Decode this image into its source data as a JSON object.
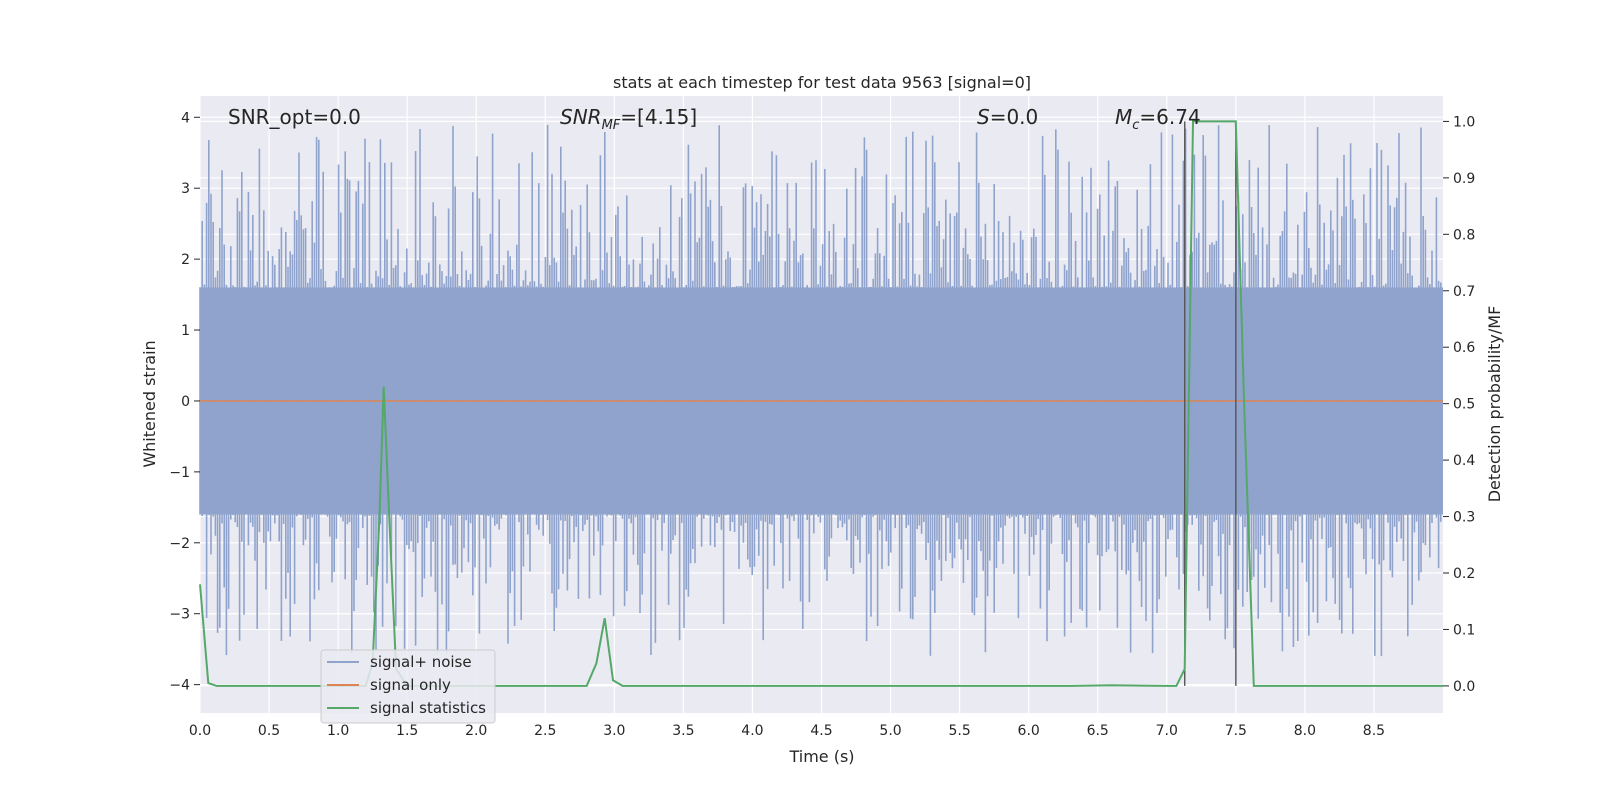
{
  "chart_data": {
    "type": "line",
    "title": "stats at each timestep for test data 9563 [signal=0]",
    "xlabel": "Time (s)",
    "ylabel": "Whitened strain",
    "y2label": "Detection probability/MF",
    "xlim": [
      0.0,
      9.0
    ],
    "ylim": [
      -4.4,
      4.3
    ],
    "y2lim": [
      -0.048,
      1.045
    ],
    "grid": true,
    "legend_position": "lower-left",
    "x_ticks": [
      "0.0",
      "0.5",
      "1.0",
      "1.5",
      "2.0",
      "2.5",
      "3.0",
      "3.5",
      "4.0",
      "4.5",
      "5.0",
      "5.5",
      "6.0",
      "6.5",
      "7.0",
      "7.5",
      "8.0",
      "8.5"
    ],
    "y_ticks": [
      "4",
      "3",
      "2",
      "1",
      "0",
      "−1",
      "−2",
      "−3",
      "−4"
    ],
    "y2_ticks": [
      "1.0",
      "0.9",
      "0.8",
      "0.7",
      "0.6",
      "0.5",
      "0.4",
      "0.3",
      "0.2",
      "0.1",
      "0.0"
    ],
    "annotations": {
      "snr_opt": "SNR_opt=0.0",
      "snr_mf_base": "SNR",
      "snr_mf_sub": "MF",
      "snr_mf_rest": "=[4.15]",
      "s_base": "S",
      "s_rest": "=0.0",
      "mc_base": "M",
      "mc_sub": "c",
      "mc_rest": "=6.74"
    },
    "vertical_markers_x": [
      7.13,
      7.5
    ],
    "series": [
      {
        "name": "signal+ noise",
        "color": "#8fa3cc",
        "x_range": [
          0.0,
          9.0
        ],
        "mean": 0.0,
        "dense_envelope": [
          -1.6,
          1.6
        ],
        "spike_extremes": {
          "max": 3.9,
          "min": -3.6
        }
      },
      {
        "name": "signal only",
        "color": "#dd8452",
        "x": [
          0.0,
          9.0
        ],
        "y": [
          0.0,
          0.0
        ]
      },
      {
        "name": "signal statistics",
        "color": "#55a868",
        "x": [
          0.0,
          0.06,
          0.12,
          0.3,
          1.2,
          1.25,
          1.3,
          1.33,
          1.37,
          1.42,
          1.5,
          2.8,
          2.87,
          2.93,
          2.99,
          3.06,
          3.2,
          6.3,
          6.6,
          7.0,
          7.07,
          7.13,
          7.19,
          7.25,
          7.5,
          7.56,
          7.63,
          7.7,
          9.0
        ],
        "y": [
          0.18,
          0.005,
          0.0,
          0.0,
          0.0,
          0.04,
          0.3,
          0.53,
          0.3,
          0.03,
          0.0,
          0.0,
          0.04,
          0.12,
          0.01,
          0.0,
          0.0,
          0.0,
          0.001,
          0.0,
          0.0,
          0.03,
          1.0,
          1.0,
          1.0,
          0.5,
          0.0,
          0.0,
          0.0
        ]
      }
    ]
  }
}
